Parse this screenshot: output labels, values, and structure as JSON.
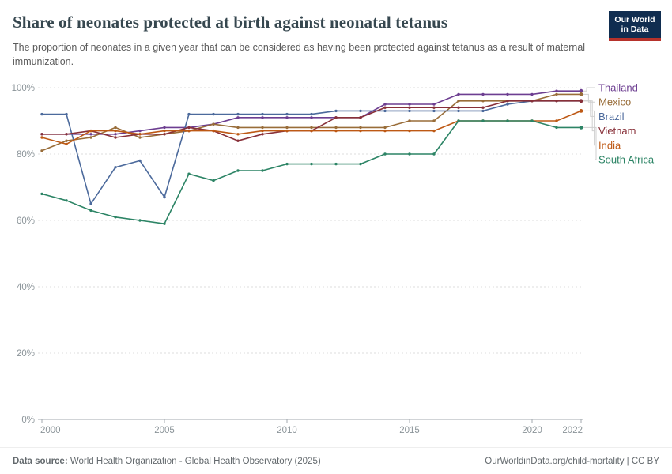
{
  "header": {
    "title": "Share of neonates protected at birth against neonatal tetanus",
    "subtitle": "The proportion of neonates in a given year that can be considered as having been protected against tetanus as a result of maternal immunization."
  },
  "logo": {
    "line1": "Our World",
    "line2": "in Data"
  },
  "chart_data": {
    "type": "line",
    "x": [
      2000,
      2001,
      2002,
      2003,
      2004,
      2005,
      2006,
      2007,
      2008,
      2009,
      2010,
      2011,
      2012,
      2013,
      2014,
      2015,
      2016,
      2017,
      2018,
      2019,
      2020,
      2021,
      2022
    ],
    "x_ticks": [
      2000,
      2005,
      2010,
      2015,
      2020,
      2022
    ],
    "y_ticks": [
      0,
      20,
      40,
      60,
      80,
      100
    ],
    "y_tick_suffix": "%",
    "ylim": [
      0,
      100
    ],
    "grid": "dashed-horizontal",
    "legend_position": "right",
    "series": [
      {
        "name": "Thailand",
        "color": "#6D3E91",
        "values": [
          86,
          86,
          86,
          86,
          87,
          88,
          88,
          89,
          91,
          91,
          91,
          91,
          91,
          91,
          95,
          95,
          95,
          98,
          98,
          98,
          98,
          99,
          99
        ]
      },
      {
        "name": "Mexico",
        "color": "#996D39",
        "values": [
          81,
          84,
          85,
          88,
          85,
          86,
          87,
          89,
          88,
          88,
          88,
          88,
          88,
          88,
          88,
          90,
          90,
          96,
          96,
          96,
          96,
          98,
          98
        ]
      },
      {
        "name": "Brazil",
        "color": "#4C6A9C",
        "values": [
          92,
          92,
          65,
          76,
          78,
          67,
          92,
          92,
          92,
          92,
          92,
          92,
          93,
          93,
          93,
          93,
          93,
          93,
          93,
          95,
          96,
          96,
          96
        ]
      },
      {
        "name": "Vietnam",
        "color": "#883039",
        "values": [
          86,
          86,
          87,
          85,
          86,
          86,
          88,
          87,
          84,
          86,
          87,
          87,
          91,
          91,
          94,
          94,
          94,
          94,
          94,
          96,
          96,
          96,
          96
        ]
      },
      {
        "name": "India",
        "color": "#BE5915",
        "values": [
          85,
          83,
          87,
          87,
          86,
          87,
          87,
          87,
          86,
          87,
          87,
          87,
          87,
          87,
          87,
          87,
          87,
          90,
          90,
          90,
          90,
          90,
          93
        ]
      },
      {
        "name": "South Africa",
        "color": "#2C8465",
        "values": [
          68,
          66,
          63,
          61,
          60,
          59,
          74,
          72,
          75,
          75,
          77,
          77,
          77,
          77,
          80,
          80,
          80,
          90,
          90,
          90,
          90,
          88,
          88
        ]
      }
    ]
  },
  "footer": {
    "source_label": "Data source:",
    "source_text": " World Health Organization - Global Health Observatory (2025)",
    "credit": "OurWorldinData.org/child-mortality | CC BY"
  }
}
